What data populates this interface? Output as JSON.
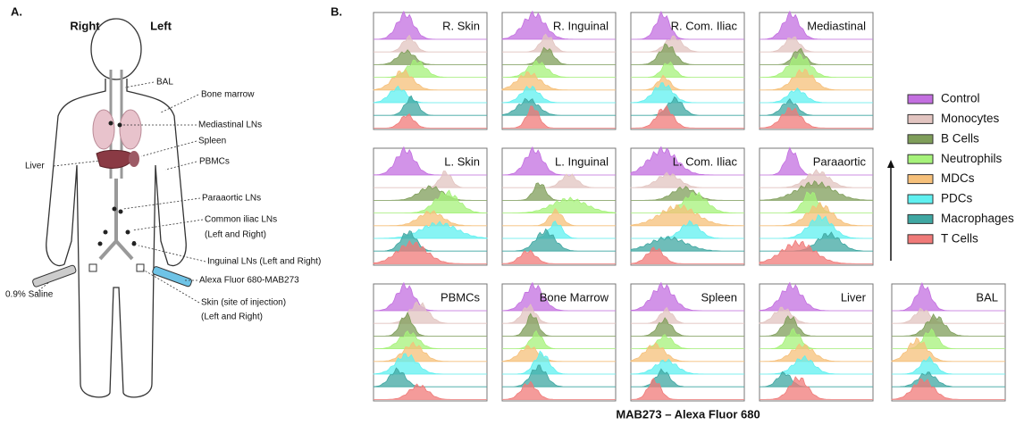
{
  "figure": {
    "panel_a": {
      "label": "A.",
      "side_right": "Right",
      "side_left": "Left",
      "annotations": [
        "BAL",
        "Bone marrow",
        "Mediastinal LNs",
        "Spleen",
        "Liver",
        "PBMCs",
        "Paraaortic LNs",
        "Common iliac LNs",
        "(Left and Right)",
        "Inguinal LNs (Left and Right)",
        "Alexa Fluor 680-MAB273",
        "0.9% Saline",
        "Skin (site of injection)",
        "(Left and Right)"
      ]
    },
    "panel_b": {
      "label": "B.",
      "panels": [
        "R. Skin",
        "R. Inguinal",
        "R. Com. Iliac",
        "Mediastinal",
        "L. Skin",
        "L. Inguinal",
        "L. Com. Iliac",
        "Paraaortic",
        "PBMCs",
        "Bone Marrow",
        "Spleen",
        "Liver",
        "BAL"
      ],
      "legend": [
        {
          "name": "Control",
          "color": "#c36fe0"
        },
        {
          "name": "Monocytes",
          "color": "#e2c4c0"
        },
        {
          "name": "B Cells",
          "color": "#7f9e5a"
        },
        {
          "name": "Neutrophils",
          "color": "#a6f27a"
        },
        {
          "name": "MDCs",
          "color": "#f6c07a"
        },
        {
          "name": "PDCs",
          "color": "#5ff0f0"
        },
        {
          "name": "Macrophages",
          "color": "#3fa7a2"
        },
        {
          "name": "T Cells",
          "color": "#f07a78"
        }
      ],
      "x_label": "MAB273 – Alexa Fluor 680"
    }
  }
}
